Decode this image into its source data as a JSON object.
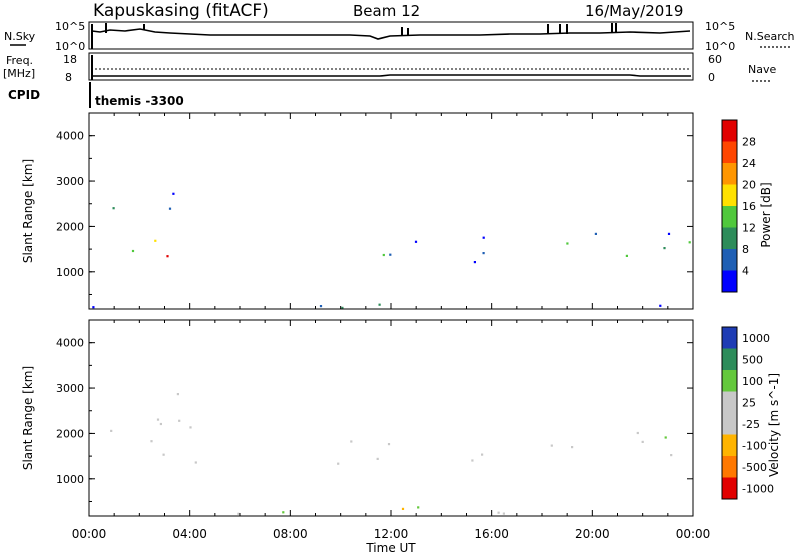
{
  "header": {
    "station": "Kapuskasing (fitACF)",
    "beam": "Beam 12",
    "date": "16/May/2019"
  },
  "summary_panel": {
    "nsky_label": "N.Sky",
    "nsky_top": "10^5",
    "nsky_bottom": "10^0",
    "nsearch_label": "N.Search",
    "nsearch_top": "10^5",
    "nsearch_bottom": "10^0",
    "freq_label": "Freq.",
    "freq_unit": "[MHz]",
    "freq_top": "18",
    "freq_bottom": "8",
    "nave_label": "Nave",
    "nave_top": "60",
    "nave_bottom": "0",
    "cpid_label": "CPID",
    "cpid_value": "themis -3300"
  },
  "chart_data": [
    {
      "type": "heatmap",
      "title": "",
      "xlabel": "Time UT",
      "ylabel": "Slant Range [km]",
      "xlim_hours": [
        0,
        24
      ],
      "ylim": [
        180,
        4500
      ],
      "yticks": [
        "1000",
        "2000",
        "3000",
        "4000"
      ],
      "colorbar": {
        "label": "Power [dB]",
        "ticks": [
          "4",
          "8",
          "12",
          "16",
          "20",
          "24",
          "28"
        ],
        "colors": [
          "#0000ff",
          "#1f5fb4",
          "#2d8c5a",
          "#50c83c",
          "#ffe100",
          "#ff9600",
          "#ff4600",
          "#e10000"
        ]
      },
      "echo_regions": [
        {
          "t0": 0.0,
          "t1": 2.6,
          "r0": 1300,
          "r1": 1900,
          "level": 3
        },
        {
          "t0": 2.8,
          "t1": 4.4,
          "r0": 750,
          "r1": 1450,
          "level": 6
        },
        {
          "t0": 0.0,
          "t1": 4.0,
          "r0": 2300,
          "r1": 2900,
          "level": 1
        },
        {
          "t0": 9.8,
          "t1": 16.5,
          "r0": 1100,
          "r1": 1900,
          "level": 1
        },
        {
          "t0": 17.5,
          "t1": 24.0,
          "r0": 1300,
          "r1": 2100,
          "level": 2
        },
        {
          "t0": 0.0,
          "t1": 24.0,
          "r0": 180,
          "r1": 400,
          "level": 1
        }
      ]
    },
    {
      "type": "heatmap",
      "title": "",
      "xlabel": "Time UT",
      "ylabel": "Slant Range [km]",
      "xlim_hours": [
        0,
        24
      ],
      "ylim": [
        180,
        4500
      ],
      "yticks": [
        "1000",
        "2000",
        "3000",
        "4000"
      ],
      "xticks": [
        "00:00",
        "04:00",
        "08:00",
        "12:00",
        "16:00",
        "20:00",
        "00:00"
      ],
      "colorbar": {
        "label": "Velocity [m s^-1]",
        "ticks": [
          "1000",
          "500",
          "100",
          "25",
          "-25",
          "-100",
          "-500",
          "-1000"
        ],
        "colors": [
          "#1e3cb4",
          "#2d8c5a",
          "#64c83c",
          "#c8c8c8",
          "#c8c8c8",
          "#ffb400",
          "#ff7800",
          "#e10000"
        ]
      },
      "echo_regions": [
        {
          "t0": 0.0,
          "t1": 4.4,
          "r0": 1000,
          "r1": 2900,
          "level": "ground"
        },
        {
          "t0": 9.8,
          "t1": 16.5,
          "r0": 1100,
          "r1": 1900,
          "level": "ground"
        },
        {
          "t0": 17.5,
          "t1": 24.0,
          "r0": 1300,
          "r1": 2100,
          "level": "ground"
        },
        {
          "t0": 0.0,
          "t1": 24.0,
          "r0": 180,
          "r1": 400,
          "level": "mixed"
        }
      ]
    }
  ]
}
